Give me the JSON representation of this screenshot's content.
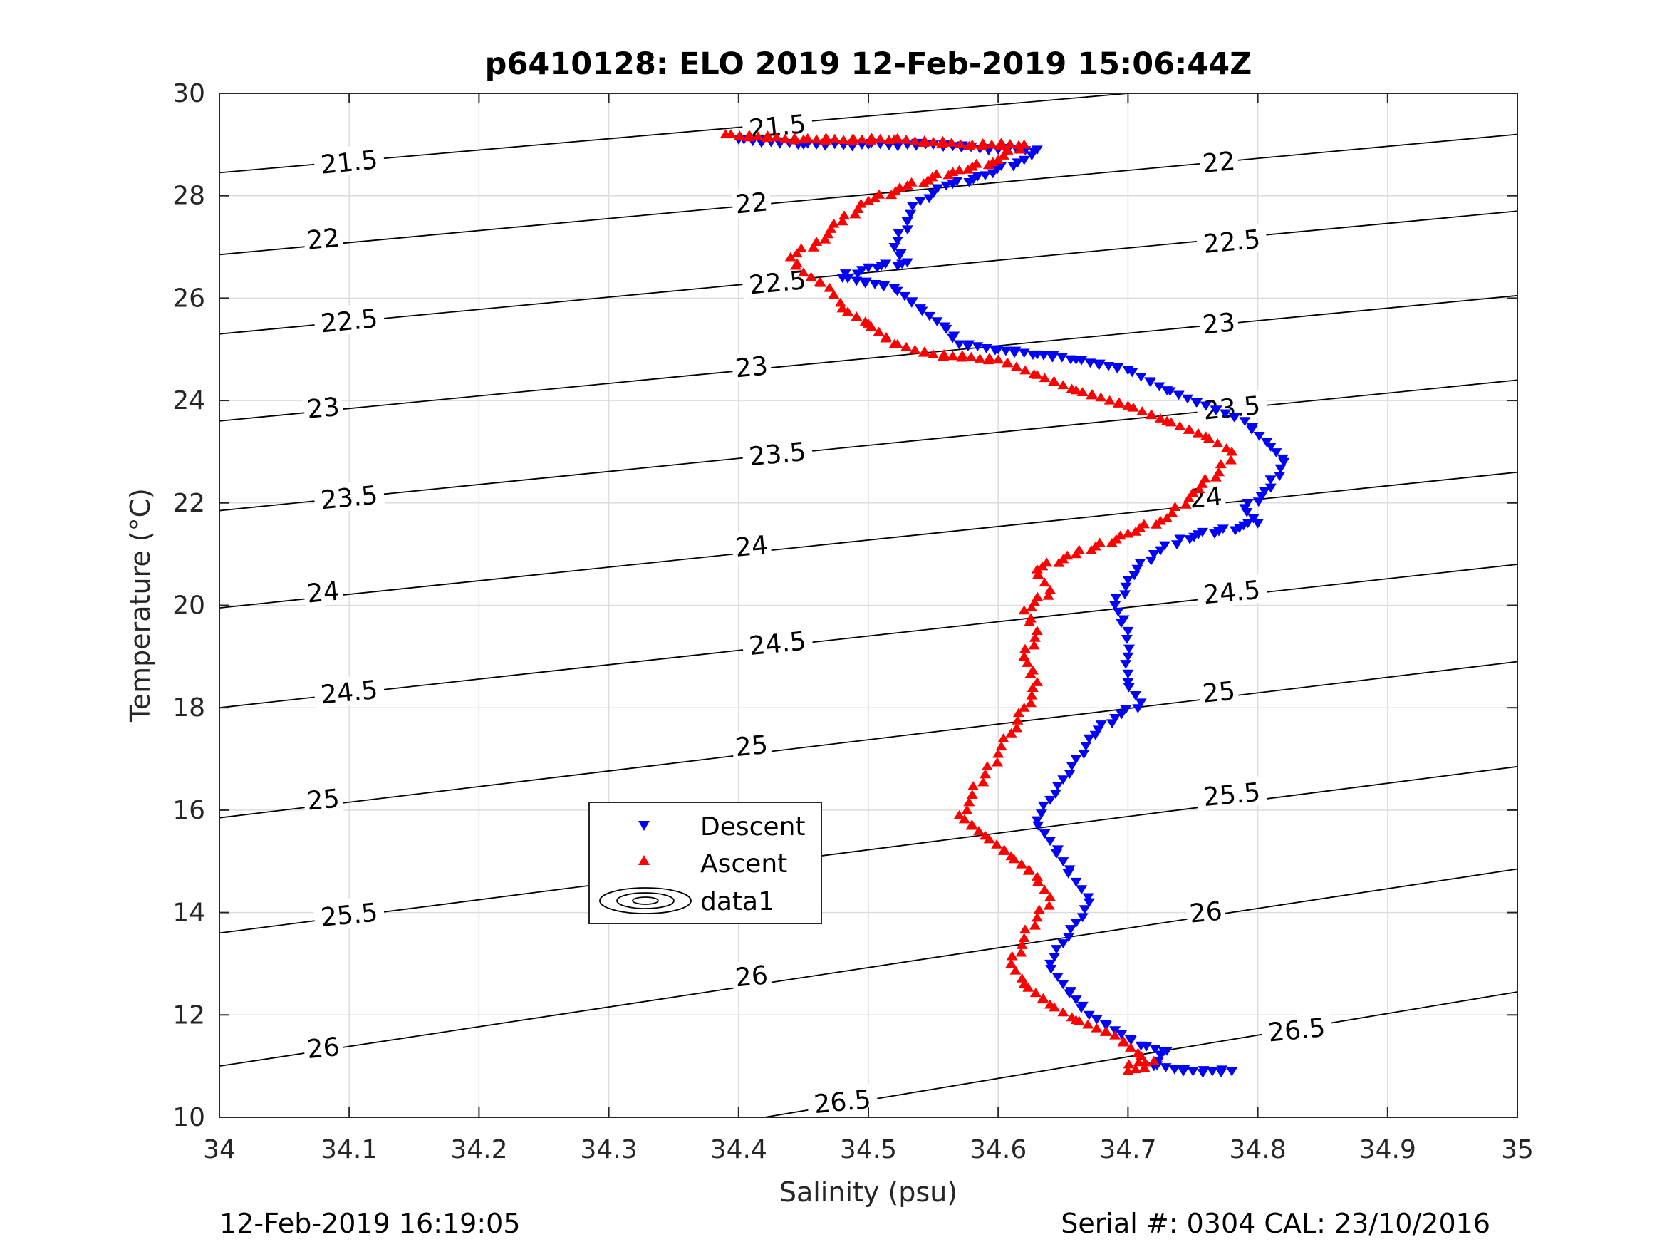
{
  "chart_data": {
    "type": "scatter",
    "title": "p6410128: ELO 2019 12-Feb-2019 15:06:44Z",
    "xlabel": "Salinity (psu)",
    "ylabel": "Temperature (°C)",
    "xlim": [
      34,
      35
    ],
    "ylim": [
      10,
      30
    ],
    "xticks": [
      "34",
      "34.1",
      "34.2",
      "34.3",
      "34.4",
      "34.5",
      "34.6",
      "34.7",
      "34.8",
      "34.9",
      "35"
    ],
    "yticks": [
      "10",
      "12",
      "14",
      "16",
      "18",
      "20",
      "22",
      "24",
      "26",
      "28",
      "30"
    ],
    "grid": true,
    "legend_position": "inside-left-lower",
    "legend": [
      "Descent",
      "Ascent",
      "data1"
    ],
    "footer_left": "12-Feb-2019 16:19:05",
    "footer_right": "Serial #: 0304  CAL: 23/10/2016",
    "colors": {
      "descent": "#0000ff",
      "ascent": "#ff0000",
      "contour": "#000000",
      "grid": "#dcdcdc"
    },
    "series": [
      {
        "name": "Descent",
        "marker": "triangle-down",
        "points": [
          [
            34.4,
            29.1
          ],
          [
            34.45,
            29.0
          ],
          [
            34.5,
            29.0
          ],
          [
            34.55,
            29.0
          ],
          [
            34.6,
            28.9
          ],
          [
            34.63,
            28.9
          ],
          [
            34.62,
            28.7
          ],
          [
            34.59,
            28.4
          ],
          [
            34.56,
            28.2
          ],
          [
            34.54,
            27.9
          ],
          [
            34.53,
            27.5
          ],
          [
            34.52,
            27.0
          ],
          [
            34.53,
            26.7
          ],
          [
            34.5,
            26.6
          ],
          [
            34.48,
            26.4
          ],
          [
            34.52,
            26.2
          ],
          [
            34.54,
            25.8
          ],
          [
            34.56,
            25.4
          ],
          [
            34.57,
            25.1
          ],
          [
            34.6,
            25.0
          ],
          [
            34.63,
            24.9
          ],
          [
            34.66,
            24.8
          ],
          [
            34.7,
            24.6
          ],
          [
            34.73,
            24.2
          ],
          [
            34.76,
            23.9
          ],
          [
            34.79,
            23.6
          ],
          [
            34.81,
            23.1
          ],
          [
            34.82,
            22.8
          ],
          [
            34.81,
            22.3
          ],
          [
            34.79,
            21.9
          ],
          [
            34.8,
            21.6
          ],
          [
            34.74,
            21.3
          ],
          [
            34.72,
            21.0
          ],
          [
            34.7,
            20.5
          ],
          [
            34.69,
            20.0
          ],
          [
            34.7,
            19.5
          ],
          [
            34.7,
            19.0
          ],
          [
            34.7,
            18.5
          ],
          [
            34.71,
            18.1
          ],
          [
            34.69,
            17.8
          ],
          [
            34.67,
            17.4
          ],
          [
            34.66,
            17.0
          ],
          [
            34.65,
            16.6
          ],
          [
            34.64,
            16.2
          ],
          [
            34.63,
            15.8
          ],
          [
            34.64,
            15.4
          ],
          [
            34.65,
            15.0
          ],
          [
            34.66,
            14.6
          ],
          [
            34.67,
            14.2
          ],
          [
            34.66,
            13.8
          ],
          [
            34.65,
            13.4
          ],
          [
            34.64,
            13.0
          ],
          [
            34.65,
            12.6
          ],
          [
            34.66,
            12.3
          ],
          [
            34.67,
            12.0
          ],
          [
            34.69,
            11.7
          ],
          [
            34.71,
            11.4
          ],
          [
            34.73,
            11.3
          ],
          [
            34.72,
            11.0
          ],
          [
            34.75,
            10.9
          ],
          [
            34.78,
            10.9
          ]
        ]
      },
      {
        "name": "Ascent",
        "marker": "triangle-up",
        "points": [
          [
            34.39,
            29.2
          ],
          [
            34.45,
            29.1
          ],
          [
            34.52,
            29.1
          ],
          [
            34.58,
            29.0
          ],
          [
            34.62,
            29.0
          ],
          [
            34.6,
            28.7
          ],
          [
            34.57,
            28.5
          ],
          [
            34.53,
            28.2
          ],
          [
            34.5,
            27.9
          ],
          [
            34.48,
            27.5
          ],
          [
            34.46,
            27.1
          ],
          [
            34.44,
            26.8
          ],
          [
            34.45,
            26.5
          ],
          [
            34.47,
            26.2
          ],
          [
            34.48,
            25.8
          ],
          [
            34.5,
            25.5
          ],
          [
            34.52,
            25.1
          ],
          [
            34.55,
            24.9
          ],
          [
            34.6,
            24.8
          ],
          [
            34.63,
            24.5
          ],
          [
            34.66,
            24.2
          ],
          [
            34.7,
            23.9
          ],
          [
            34.73,
            23.6
          ],
          [
            34.76,
            23.3
          ],
          [
            34.78,
            23.0
          ],
          [
            34.77,
            22.6
          ],
          [
            34.75,
            22.2
          ],
          [
            34.73,
            21.7
          ],
          [
            34.7,
            21.4
          ],
          [
            34.66,
            21.0
          ],
          [
            34.63,
            20.7
          ],
          [
            34.64,
            20.3
          ],
          [
            34.62,
            19.9
          ],
          [
            34.63,
            19.5
          ],
          [
            34.62,
            19.0
          ],
          [
            34.63,
            18.5
          ],
          [
            34.62,
            18.0
          ],
          [
            34.61,
            17.5
          ],
          [
            34.6,
            17.1
          ],
          [
            34.59,
            16.7
          ],
          [
            34.58,
            16.3
          ],
          [
            34.57,
            15.9
          ],
          [
            34.59,
            15.5
          ],
          [
            34.61,
            15.1
          ],
          [
            34.63,
            14.7
          ],
          [
            34.64,
            14.3
          ],
          [
            34.63,
            13.9
          ],
          [
            34.62,
            13.5
          ],
          [
            34.61,
            13.0
          ],
          [
            34.62,
            12.6
          ],
          [
            34.64,
            12.2
          ],
          [
            34.66,
            11.9
          ],
          [
            34.69,
            11.6
          ],
          [
            34.71,
            11.2
          ],
          [
            34.7,
            10.9
          ],
          [
            34.72,
            11.1
          ]
        ]
      }
    ],
    "contours": {
      "name": "data1",
      "label_lines": [
        {
          "level": "21.5",
          "ends": [
            [
              34.0,
              28.45
            ],
            [
              34.7,
              30.0
            ]
          ]
        },
        {
          "level": "22",
          "ends": [
            [
              34.0,
              26.85
            ],
            [
              35.0,
              29.2
            ]
          ]
        },
        {
          "level": "22.5",
          "ends": [
            [
              34.0,
              25.3
            ],
            [
              35.0,
              27.7
            ]
          ]
        },
        {
          "level": "23",
          "ends": [
            [
              34.0,
              23.6
            ],
            [
              35.0,
              26.05
            ]
          ]
        },
        {
          "level": "23.5",
          "ends": [
            [
              34.0,
              21.85
            ],
            [
              35.0,
              24.4
            ]
          ]
        },
        {
          "level": "24",
          "ends": [
            [
              34.0,
              19.95
            ],
            [
              35.0,
              22.6
            ]
          ]
        },
        {
          "level": "24.5",
          "ends": [
            [
              34.0,
              18.0
            ],
            [
              35.0,
              20.8
            ]
          ]
        },
        {
          "level": "25",
          "ends": [
            [
              34.0,
              15.85
            ],
            [
              35.0,
              18.9
            ]
          ]
        },
        {
          "level": "25.5",
          "ends": [
            [
              34.0,
              13.6
            ],
            [
              35.0,
              16.85
            ]
          ]
        },
        {
          "level": "26",
          "ends": [
            [
              34.0,
              11.0
            ],
            [
              35.0,
              14.85
            ]
          ]
        },
        {
          "level": "26.5",
          "ends": [
            [
              34.42,
              10.0
            ],
            [
              35.0,
              12.45
            ]
          ]
        }
      ],
      "labels": [
        {
          "text": "21.5",
          "at": [
            34.1,
            28.65
          ]
        },
        {
          "text": "21.5",
          "at": [
            34.43,
            29.35
          ]
        },
        {
          "text": "22",
          "at": [
            34.08,
            27.15
          ]
        },
        {
          "text": "22",
          "at": [
            34.41,
            27.85
          ]
        },
        {
          "text": "22",
          "at": [
            34.77,
            28.65
          ]
        },
        {
          "text": "22.5",
          "at": [
            34.1,
            25.55
          ]
        },
        {
          "text": "22.5",
          "at": [
            34.43,
            26.3
          ]
        },
        {
          "text": "22.5",
          "at": [
            34.78,
            27.1
          ]
        },
        {
          "text": "23",
          "at": [
            34.08,
            23.85
          ]
        },
        {
          "text": "23",
          "at": [
            34.41,
            24.65
          ]
        },
        {
          "text": "23",
          "at": [
            34.77,
            25.5
          ]
        },
        {
          "text": "23.5",
          "at": [
            34.1,
            22.1
          ]
        },
        {
          "text": "23.5",
          "at": [
            34.43,
            22.95
          ]
        },
        {
          "text": "23.5",
          "at": [
            34.78,
            23.85
          ]
        },
        {
          "text": "24",
          "at": [
            34.08,
            20.25
          ]
        },
        {
          "text": "24",
          "at": [
            34.41,
            21.15
          ]
        },
        {
          "text": "24",
          "at": [
            34.76,
            22.1
          ]
        },
        {
          "text": "24.5",
          "at": [
            34.1,
            18.3
          ]
        },
        {
          "text": "24.5",
          "at": [
            34.43,
            19.25
          ]
        },
        {
          "text": "24.5",
          "at": [
            34.78,
            20.25
          ]
        },
        {
          "text": "25",
          "at": [
            34.08,
            16.2
          ]
        },
        {
          "text": "25",
          "at": [
            34.41,
            17.25
          ]
        },
        {
          "text": "25",
          "at": [
            34.77,
            18.3
          ]
        },
        {
          "text": "25.5",
          "at": [
            34.1,
            13.95
          ]
        },
        {
          "text": "25.5",
          "at": [
            34.42,
            15.1
          ]
        },
        {
          "text": "25.5",
          "at": [
            34.78,
            16.3
          ]
        },
        {
          "text": "26",
          "at": [
            34.08,
            11.35
          ]
        },
        {
          "text": "26",
          "at": [
            34.41,
            12.75
          ]
        },
        {
          "text": "26",
          "at": [
            34.76,
            14.0
          ]
        },
        {
          "text": "26.5",
          "at": [
            34.48,
            10.3
          ]
        },
        {
          "text": "26.5",
          "at": [
            34.83,
            11.7
          ]
        }
      ]
    }
  }
}
